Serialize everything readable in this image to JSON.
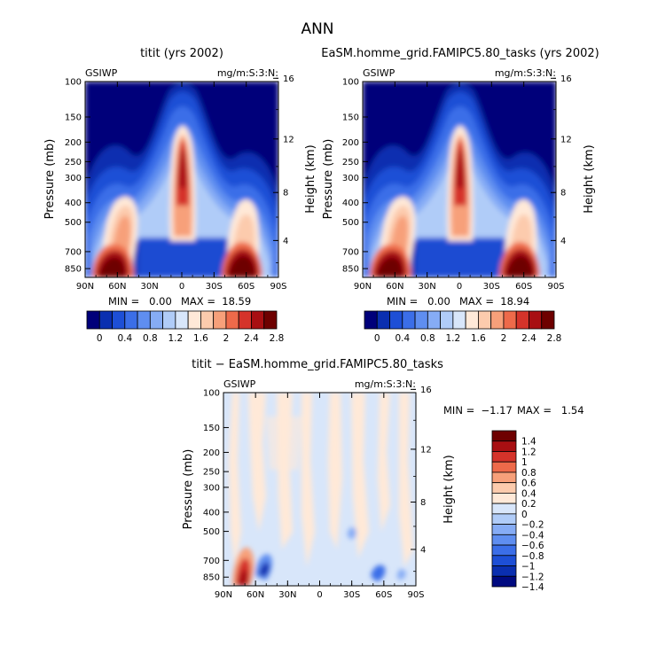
{
  "page_title": "ANN",
  "colors": {
    "main_scale": [
      "#00007a",
      "#0a2fb0",
      "#1d4fd6",
      "#3b6ee8",
      "#5f8ef0",
      "#86acf5",
      "#b0ccf8",
      "#d8e6fa",
      "#ffe9d8",
      "#fccbad",
      "#f7a07a",
      "#ee6a4a",
      "#d5332a",
      "#a80f12",
      "#6e0000"
    ],
    "diff_scale": [
      "#000a80",
      "#0a2fb0",
      "#1d4fd6",
      "#3b6ee8",
      "#5f8ef0",
      "#86acf5",
      "#b0ccf8",
      "#d8e6fa",
      "#ffe9d8",
      "#fccbad",
      "#f7a07a",
      "#ee6a4a",
      "#d5332a",
      "#a80f12",
      "#6e0000"
    ]
  },
  "chart_data": [
    {
      "type": "heatmap",
      "title": "titit (yrs 2002)",
      "left_label": "GSIWP",
      "right_label": "mg/m:S:3:N:",
      "xlabel": "",
      "ylabel": "Pressure (mb)",
      "y2label": "Height (km)",
      "x_ticks": [
        "90N",
        "60N",
        "30N",
        "0",
        "30S",
        "60S",
        "90S"
      ],
      "y_ticks": [
        "100",
        "150",
        "200",
        "250",
        "300",
        "400",
        "500",
        "700",
        "850"
      ],
      "y2_ticks": [
        "16",
        "12",
        "8",
        "4"
      ],
      "min_text": "MIN =   0.00",
      "max_text": "MAX =  18.59",
      "colorbar_labels": [
        "0",
        "0.4",
        "0.8",
        "1.2",
        "1.6",
        "2",
        "2.4",
        "2.8"
      ],
      "description_levels": [
        0,
        0.2,
        0.4,
        0.6,
        0.8,
        1.0,
        1.2,
        1.4,
        1.6,
        1.8,
        2.0,
        2.2,
        2.4,
        2.6,
        2.8
      ]
    },
    {
      "type": "heatmap",
      "title": "EaSM.homme_grid.FAMIPC5.80_tasks (yrs 2002)",
      "left_label": "GSIWP",
      "right_label": "mg/m:S:3:N:",
      "xlabel": "",
      "ylabel": "Pressure (mb)",
      "y2label": "Height (km)",
      "x_ticks": [
        "90N",
        "60N",
        "30N",
        "0",
        "30S",
        "60S",
        "90S"
      ],
      "y_ticks": [
        "100",
        "150",
        "200",
        "250",
        "300",
        "400",
        "500",
        "700",
        "850"
      ],
      "y2_ticks": [
        "16",
        "12",
        "8",
        "4"
      ],
      "min_text": "MIN =   0.00",
      "max_text": "MAX =  18.94",
      "colorbar_labels": [
        "0",
        "0.4",
        "0.8",
        "1.2",
        "1.6",
        "2",
        "2.4",
        "2.8"
      ],
      "description_levels": [
        0,
        0.2,
        0.4,
        0.6,
        0.8,
        1.0,
        1.2,
        1.4,
        1.6,
        1.8,
        2.0,
        2.2,
        2.4,
        2.6,
        2.8
      ]
    },
    {
      "type": "heatmap",
      "title": "titit − EaSM.homme_grid.FAMIPC5.80_tasks",
      "left_label": "GSIWP",
      "right_label": "mg/m:S:3:N:",
      "xlabel": "",
      "ylabel": "Pressure (mb)",
      "y2label": "Height (km)",
      "x_ticks": [
        "90N",
        "60N",
        "30N",
        "0",
        "30S",
        "60S",
        "90S"
      ],
      "y_ticks": [
        "100",
        "150",
        "200",
        "250",
        "300",
        "400",
        "500",
        "700",
        "850"
      ],
      "y2_ticks": [
        "16",
        "12",
        "8",
        "4"
      ],
      "min_text": "MIN =  −1.17",
      "max_text": "MAX =   1.54",
      "colorbar_labels": [
        "1.4",
        "1.2",
        "1",
        "0.8",
        "0.6",
        "0.4",
        "0.2",
        "0",
        "−0.2",
        "−0.4",
        "−0.6",
        "−0.8",
        "−1",
        "−1.2",
        "−1.4"
      ]
    }
  ]
}
